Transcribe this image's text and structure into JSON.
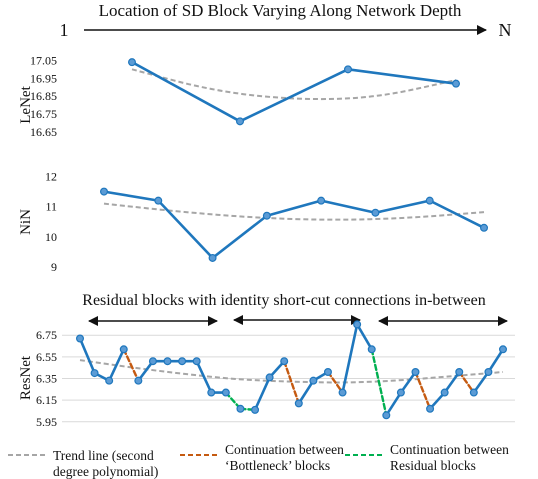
{
  "header": {
    "title": "Location of SD Block Varying Along Network Depth",
    "start_label": "1",
    "end_label": "N"
  },
  "residual_caption": "Residual blocks with identity short-cut connections in-between",
  "legend": {
    "trend": [
      "Trend line (second",
      "degree polynomial)"
    ],
    "bottleneck": [
      "Continuation between",
      "‘Bottleneck’ blocks"
    ],
    "residual": [
      "Continuation between",
      "Residual blocks"
    ]
  },
  "colors": {
    "series": "#1f77bd",
    "marker_fill": "#5b9bd5",
    "trend": "#a6a6a6",
    "bottleneck": "#c55a11",
    "residual": "#00b050",
    "grid": "#d9d9d9"
  },
  "chart_data": [
    {
      "type": "line",
      "ylabel": "LeNet",
      "ylim": [
        16.55,
        17.08
      ],
      "yticks": [
        "17.05",
        "16.95",
        "16.85",
        "16.75",
        "16.65"
      ],
      "grid": false,
      "x": [
        1,
        2,
        3,
        4
      ],
      "series": [
        {
          "values": [
            17.04,
            16.71,
            17.0,
            16.92
          ]
        }
      ],
      "trend": [
        17.0,
        16.88,
        16.83,
        16.84,
        16.94
      ]
    },
    {
      "type": "line",
      "ylabel": "NiN",
      "ylim": [
        8.9,
        12.15
      ],
      "yticks": [
        "12",
        "11",
        "10",
        "9"
      ],
      "grid": false,
      "x": [
        1,
        2,
        3,
        4,
        5,
        6,
        7,
        8
      ],
      "series": [
        {
          "values": [
            11.5,
            11.2,
            9.3,
            10.7,
            11.2,
            10.8,
            11.2,
            10.3
          ]
        }
      ],
      "trend": [
        11.1,
        10.83,
        10.63,
        10.55,
        10.62,
        10.82
      ]
    },
    {
      "type": "line",
      "ylabel": "ResNet",
      "ylim": [
        5.92,
        6.78
      ],
      "yticks": [
        "6.75",
        "6.55",
        "6.35",
        "6.15",
        "5.95"
      ],
      "grid": true,
      "x": [
        1,
        2,
        3,
        4,
        5,
        6,
        7,
        8,
        9,
        10,
        11,
        12,
        13,
        14,
        15,
        16,
        17,
        18,
        19,
        20,
        21,
        22,
        23,
        24,
        25,
        26,
        27,
        28,
        29,
        30
      ],
      "series": [
        {
          "values": [
            6.72,
            6.4,
            6.33,
            6.62,
            6.33,
            6.51,
            6.51,
            6.51,
            6.51,
            6.22,
            6.22,
            6.07,
            6.06,
            6.36,
            6.51,
            6.12,
            6.33,
            6.41,
            6.22,
            6.85,
            6.62,
            6.01,
            6.22,
            6.41,
            6.07,
            6.22,
            6.41,
            6.22,
            6.41,
            6.62
          ]
        }
      ],
      "segment_styles": [
        "solid",
        "solid",
        "solid",
        "bottleneck",
        "solid",
        "solid",
        "solid",
        "solid",
        "solid",
        "solid",
        "residual",
        "residual",
        "solid",
        "solid",
        "bottleneck",
        "solid",
        "solid",
        "bottleneck",
        "solid",
        "solid",
        "residual",
        "solid",
        "solid",
        "bottleneck",
        "solid",
        "solid",
        "bottleneck",
        "solid",
        "solid"
      ],
      "trend": [
        6.52,
        6.45,
        6.39,
        6.34,
        6.32,
        6.31,
        6.33,
        6.37,
        6.41
      ]
    }
  ]
}
